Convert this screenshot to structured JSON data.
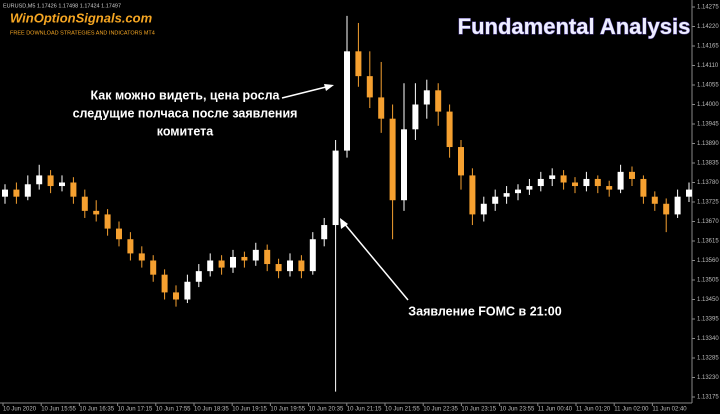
{
  "chart_data": {
    "type": "candlestick",
    "title": "Fundamental Analysis",
    "symbol_info": "EURUSD,M5  1.17426 1.17498 1.17424 1.17497",
    "logo": "WinOptionSignals.com",
    "logo_subtitle": "FREE DOWNLOAD STRATEGIES AND INDICATORS MT4",
    "annotations": [
      {
        "lines": [
          "Как можно видеть, цена росла",
          "следущие полчаса после заявления",
          "комитета"
        ]
      },
      {
        "lines": [
          "Заявление FOMC в 21:00"
        ]
      }
    ],
    "up_color": "#ffffff",
    "down_color": "#f5a030",
    "ylim": [
      1.13175,
      1.14275
    ],
    "yticks": [
      1.14275,
      {
        "value": 1.1422,
        "label": "1.14220"
      },
      1.14165,
      {
        "value": 1.1411,
        "label": "1.14110"
      },
      1.14055,
      {
        "value": 1.14,
        "label": "1.14000"
      },
      1.13945,
      {
        "value": 1.1389,
        "label": "1.13890"
      },
      1.13835,
      {
        "value": 1.1378,
        "label": "1.13780"
      },
      1.13725,
      {
        "value": 1.1367,
        "label": "1.13670"
      },
      1.13615,
      {
        "value": 1.1356,
        "label": "1.13560"
      },
      1.13505,
      {
        "value": 1.1345,
        "label": "1.13450"
      },
      1.13395,
      {
        "value": 1.1334,
        "label": "1.13340"
      },
      1.13285,
      {
        "value": 1.1323,
        "label": "1.13230"
      },
      1.13175
    ],
    "xtick_labels": [
      "10 Jun 2020",
      "10 Jun 15:55",
      "10 Jun 16:35",
      "10 Jun 17:15",
      "10 Jun 17:55",
      "10 Jun 18:35",
      "10 Jun 19:15",
      "10 Jun 19:55",
      "10 Jun 20:35",
      "10 Jun 21:15",
      "10 Jun 21:55",
      "10 Jun 22:35",
      "10 Jun 23:15",
      "10 Jun 23:55",
      "11 Jun 00:40",
      "11 Jun 01:20",
      "11 Jun 02:00",
      "11 Jun 02:40"
    ],
    "ohlc": [
      [
        1.1374,
        1.13775,
        1.1372,
        1.1376
      ],
      [
        1.1376,
        1.1378,
        1.1372,
        1.1374
      ],
      [
        1.1374,
        1.138,
        1.1373,
        1.13775
      ],
      [
        1.13775,
        1.1383,
        1.1376,
        1.138
      ],
      [
        1.138,
        1.13815,
        1.1375,
        1.1377
      ],
      [
        1.1377,
        1.138,
        1.13755,
        1.1378
      ],
      [
        1.1378,
        1.13795,
        1.1372,
        1.1374
      ],
      [
        1.1374,
        1.1376,
        1.1368,
        1.137
      ],
      [
        1.137,
        1.1373,
        1.1367,
        1.1369
      ],
      [
        1.1369,
        1.13705,
        1.1363,
        1.1365
      ],
      [
        1.1365,
        1.1367,
        1.136,
        1.1362
      ],
      [
        1.1362,
        1.1364,
        1.1356,
        1.1358
      ],
      [
        1.1358,
        1.136,
        1.1354,
        1.1356
      ],
      [
        1.1356,
        1.13575,
        1.135,
        1.1352
      ],
      [
        1.1352,
        1.13535,
        1.1345,
        1.1347
      ],
      [
        1.1347,
        1.1349,
        1.1343,
        1.1345
      ],
      [
        1.1345,
        1.1352,
        1.1344,
        1.135
      ],
      [
        1.135,
        1.1355,
        1.13485,
        1.1353
      ],
      [
        1.1353,
        1.1358,
        1.13515,
        1.1356
      ],
      [
        1.1356,
        1.13575,
        1.1352,
        1.1354
      ],
      [
        1.1354,
        1.1359,
        1.13525,
        1.1357
      ],
      [
        1.1357,
        1.13585,
        1.1354,
        1.1356
      ],
      [
        1.1356,
        1.1361,
        1.13545,
        1.1359
      ],
      [
        1.1359,
        1.13605,
        1.1353,
        1.1355
      ],
      [
        1.1355,
        1.13565,
        1.1351,
        1.1353
      ],
      [
        1.1353,
        1.1358,
        1.13515,
        1.1356
      ],
      [
        1.1356,
        1.13575,
        1.1351,
        1.1353
      ],
      [
        1.1353,
        1.1364,
        1.1352,
        1.1362
      ],
      [
        1.1362,
        1.1368,
        1.136,
        1.1366
      ],
      [
        1.1366,
        1.139,
        1.1319,
        1.1387
      ],
      [
        1.1387,
        1.1425,
        1.1385,
        1.1415
      ],
      [
        1.1415,
        1.1423,
        1.1405,
        1.1408
      ],
      [
        1.1408,
        1.1415,
        1.1399,
        1.1402
      ],
      [
        1.1402,
        1.1412,
        1.1392,
        1.1396
      ],
      [
        1.1396,
        1.14,
        1.1362,
        1.1373
      ],
      [
        1.1373,
        1.1406,
        1.137,
        1.1393
      ],
      [
        1.1393,
        1.1406,
        1.139,
        1.14
      ],
      [
        1.14,
        1.1407,
        1.1396,
        1.1404
      ],
      [
        1.1404,
        1.1406,
        1.1394,
        1.1398
      ],
      [
        1.1398,
        1.14,
        1.1385,
        1.1388
      ],
      [
        1.1388,
        1.139,
        1.1376,
        1.138
      ],
      [
        1.138,
        1.1382,
        1.1366,
        1.1369
      ],
      [
        1.1369,
        1.1374,
        1.1367,
        1.1372
      ],
      [
        1.1372,
        1.1376,
        1.137,
        1.1374
      ],
      [
        1.1374,
        1.1377,
        1.1372,
        1.1375
      ],
      [
        1.1375,
        1.13775,
        1.1373,
        1.1376
      ],
      [
        1.1376,
        1.1379,
        1.13745,
        1.1377
      ],
      [
        1.1377,
        1.1381,
        1.13755,
        1.1379
      ],
      [
        1.1379,
        1.1382,
        1.1377,
        1.138
      ],
      [
        1.138,
        1.13815,
        1.1376,
        1.1378
      ],
      [
        1.1378,
        1.13795,
        1.1375,
        1.1377
      ],
      [
        1.1377,
        1.1381,
        1.13755,
        1.1379
      ],
      [
        1.1379,
        1.138,
        1.1375,
        1.1377
      ],
      [
        1.1377,
        1.13785,
        1.1374,
        1.1376
      ],
      [
        1.1376,
        1.1383,
        1.1375,
        1.1381
      ],
      [
        1.1381,
        1.13825,
        1.1377,
        1.1379
      ],
      [
        1.1379,
        1.138,
        1.1372,
        1.1374
      ],
      [
        1.1374,
        1.13755,
        1.137,
        1.1372
      ],
      [
        1.1372,
        1.13735,
        1.1364,
        1.1369
      ],
      [
        1.1369,
        1.1376,
        1.1368,
        1.1374
      ],
      [
        1.1374,
        1.1378,
        1.13725,
        1.1376
      ]
    ]
  }
}
